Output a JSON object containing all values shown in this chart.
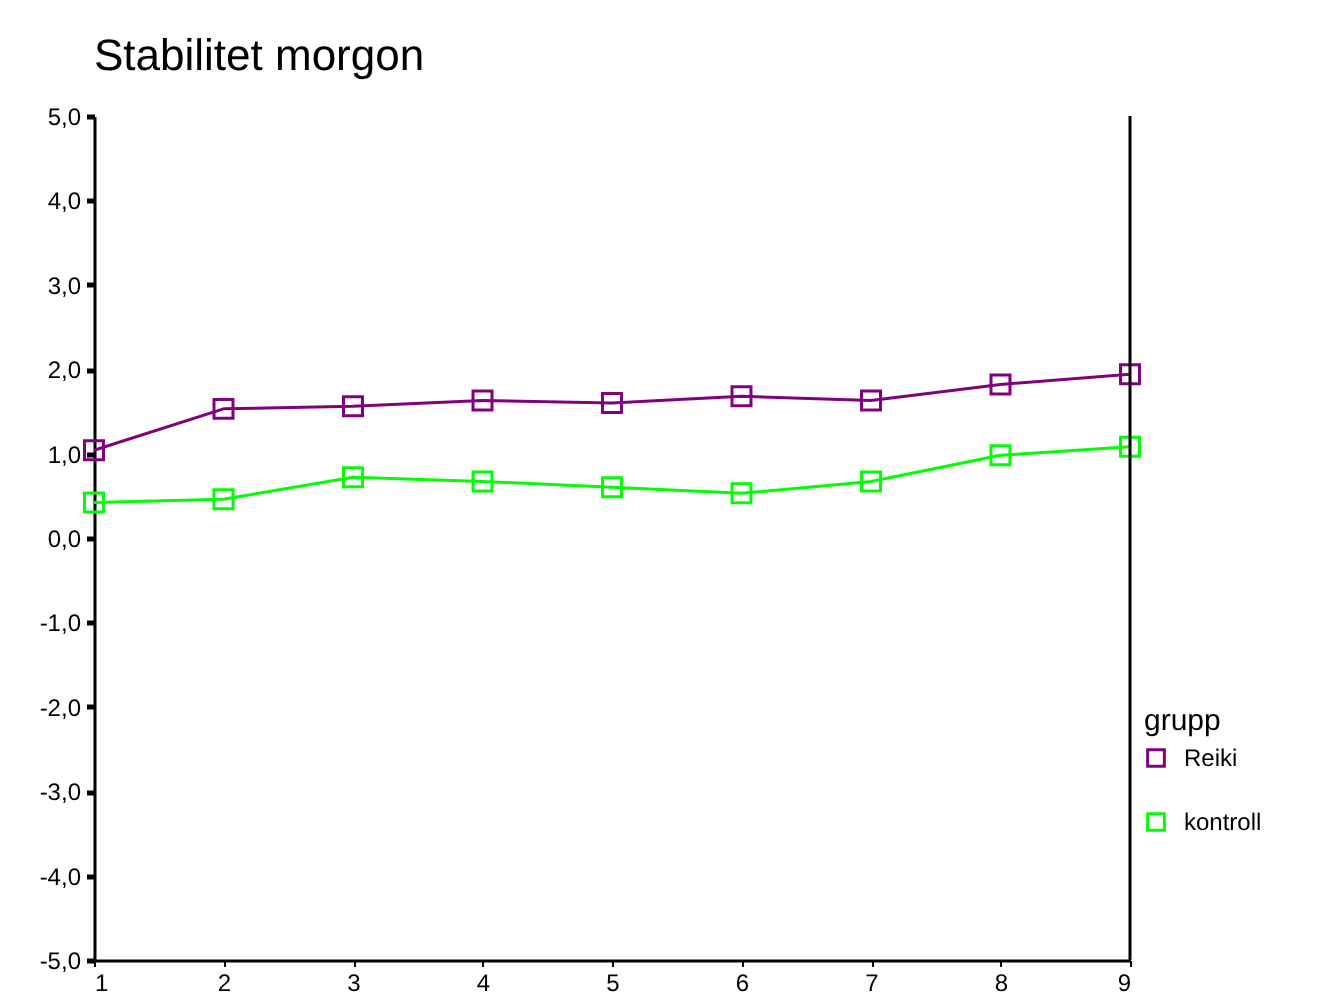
{
  "chart_data": {
    "type": "line",
    "title": "Stabilitet morgon",
    "legend_title": "grupp",
    "x": [
      1,
      2,
      3,
      4,
      5,
      6,
      7,
      8,
      9
    ],
    "series": [
      {
        "name": "Reiki",
        "color": "#800080",
        "values": [
          1.04,
          1.53,
          1.56,
          1.63,
          1.6,
          1.68,
          1.63,
          1.82,
          1.94
        ]
      },
      {
        "name": "kontroll",
        "color": "#00ff00",
        "values": [
          0.42,
          0.46,
          0.72,
          0.67,
          0.6,
          0.53,
          0.67,
          0.98,
          1.08
        ]
      }
    ],
    "xlim": [
      1,
      9
    ],
    "xticks": [
      1,
      2,
      3,
      4,
      5,
      6,
      7,
      8,
      9
    ],
    "ylim": [
      -5,
      5
    ],
    "yticks": [
      {
        "value": -5,
        "label": "-5,0"
      },
      {
        "value": -4,
        "label": "-4,0"
      },
      {
        "value": -3,
        "label": "-3,0"
      },
      {
        "value": -2,
        "label": "-2,0"
      },
      {
        "value": -1,
        "label": "-1,0"
      },
      {
        "value": 0,
        "label": "0,0"
      },
      {
        "value": 1,
        "label": "1,0"
      },
      {
        "value": 2,
        "label": "2,0"
      },
      {
        "value": 3,
        "label": "3,0"
      },
      {
        "value": 4,
        "label": "4,0"
      },
      {
        "value": 5,
        "label": "5,0"
      }
    ],
    "marker": "square",
    "line_style": "solid",
    "legend": "right",
    "grid": false
  }
}
